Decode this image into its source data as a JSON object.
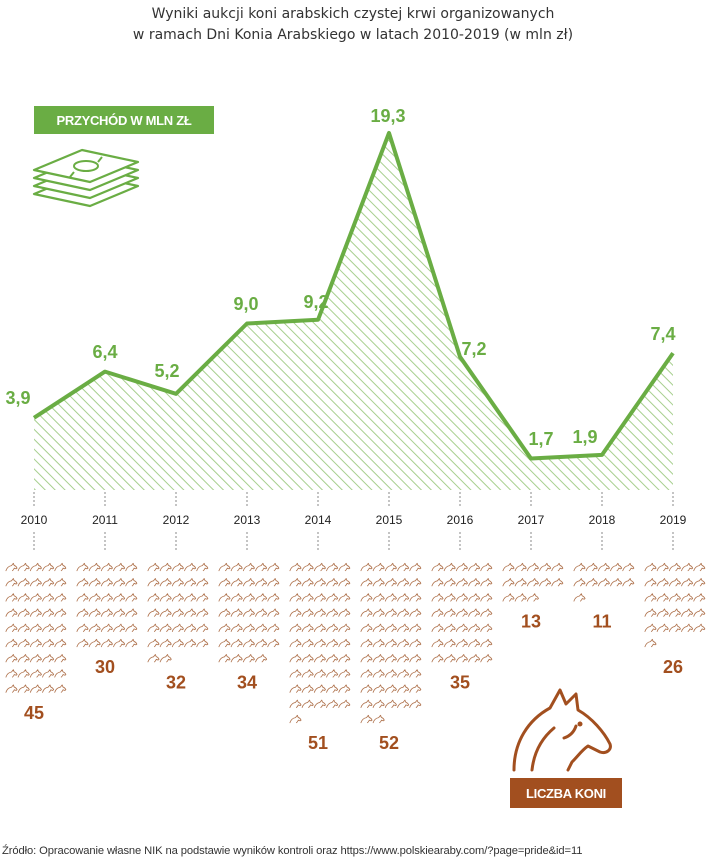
{
  "title_lines": [
    "Wyniki aukcji koni arabskich czystej krwi organizowanych",
    "w ramach Dni Konia Arabskiego w latach 2010-2019 (w mln zł)"
  ],
  "revenue_badge": "PRZYCHÓD W MLN ZŁ",
  "horses_badge": "LICZBA KONI",
  "source": "Źródło: Opracowanie własne NIK na podstawie wyników kontroli oraz https://www.polskiearaby.com/?page=pride&id=11",
  "icons": {
    "revenue": "money-stack-icon",
    "horses": "horse-head-icon",
    "horse_unit": "horse-pictogram"
  },
  "colors": {
    "revenue": "#6aad44",
    "horses": "#a24f1f",
    "hatch": "#a7cf8e",
    "horse_unit": "#b0744f"
  },
  "chart_data": {
    "type": "area",
    "categories": [
      "2010",
      "2011",
      "2012",
      "2013",
      "2014",
      "2015",
      "2016",
      "2017",
      "2018",
      "2019"
    ],
    "series": [
      {
        "name": "PRZYCHÓD W MLN ZŁ",
        "values": [
          3.9,
          6.4,
          5.2,
          9.0,
          9.2,
          19.3,
          7.2,
          1.7,
          1.9,
          7.4
        ],
        "labels": [
          "3,9",
          "6,4",
          "5,2",
          "9,0",
          "9,2",
          "19,3",
          "7,2",
          "1,7",
          "1,9",
          "7,4"
        ]
      },
      {
        "name": "LICZBA KONI",
        "values": [
          45,
          30,
          32,
          34,
          51,
          52,
          35,
          13,
          11,
          26
        ]
      }
    ]
  }
}
